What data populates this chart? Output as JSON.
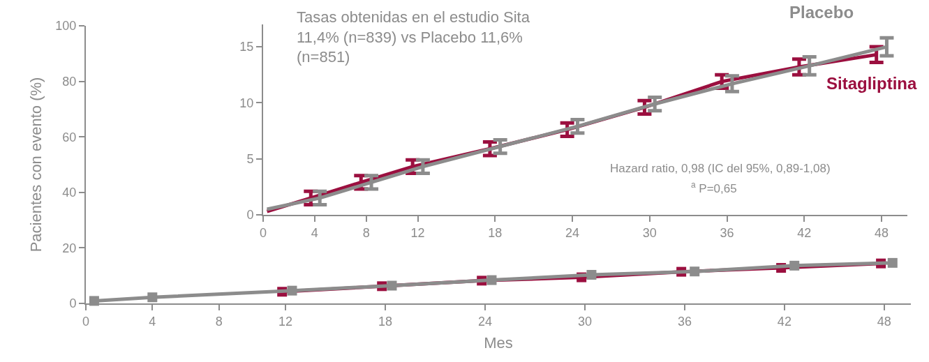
{
  "chart_data": [
    {
      "type": "line",
      "xlabel": "Mes",
      "ylabel": "Pacientes con evento (%)",
      "xlim": [
        0,
        49.6
      ],
      "ylim": [
        0,
        100
      ],
      "xticks": [
        0,
        4,
        8,
        12,
        18,
        24,
        30,
        36,
        42,
        48
      ],
      "yticks": [
        0,
        20,
        40,
        60,
        80,
        100
      ],
      "grid": false,
      "legend": false,
      "marker": "square",
      "line_style": "solid",
      "series": [
        {
          "color": "#9b0f3f",
          "x": [
            11.8,
            17.8,
            23.8,
            29.8,
            35.8,
            41.8,
            47.8
          ],
          "values": [
            4.2,
            6.2,
            8.2,
            9.4,
            11.4,
            12.8,
            14.4
          ]
        },
        {
          "color": "#8c8c8c",
          "x": [
            0.5,
            4,
            12.4,
            18.4,
            24.4,
            30.4,
            36.6,
            42.6,
            48.5
          ],
          "values": [
            0.9,
            2.2,
            4.6,
            6.4,
            8.4,
            10.3,
            11.5,
            13.6,
            14.6
          ]
        }
      ]
    },
    {
      "type": "line",
      "xlim": [
        0,
        50
      ],
      "ylim": [
        0,
        17
      ],
      "xticks": [
        0,
        4,
        8,
        12,
        18,
        24,
        30,
        36,
        42,
        48
      ],
      "yticks": [
        0,
        5,
        10,
        15
      ],
      "grid": false,
      "legend": false,
      "line_style": "solid",
      "annotations": [
        "Tasas obtenidas en el estudio Sita 11,4% (n=839) vs Placebo 11,6% (n=851)",
        "Hazard ratio, 0,98 (IC del 95%, 0,89-1,08)",
        "$^{a}$ P=0,65"
      ],
      "series": [
        {
          "name": "Sitagliptina",
          "color": "#9b0f3f",
          "x": [
            0.3,
            3.7,
            7.6,
            11.6,
            17.6,
            23.6,
            29.6,
            35.6,
            41.6,
            47.6
          ],
          "values": [
            0.3,
            1.5,
            2.9,
            4.3,
            5.9,
            7.6,
            9.6,
            11.9,
            13.2,
            14.3
          ],
          "errors": [
            null,
            0.6,
            0.6,
            0.6,
            0.6,
            0.6,
            0.6,
            0.6,
            0.7,
            0.7
          ]
        },
        {
          "name": "Placebo",
          "color": "#8c8c8c",
          "x": [
            0.3,
            4.4,
            8.4,
            12.4,
            18.4,
            24.4,
            30.4,
            36.4,
            42.4,
            48.4
          ],
          "values": [
            0.5,
            1.5,
            2.9,
            4.3,
            6.1,
            7.9,
            9.9,
            11.7,
            13.3,
            15.0
          ],
          "errors": [
            null,
            0.6,
            0.6,
            0.6,
            0.6,
            0.6,
            0.6,
            0.7,
            0.8,
            0.8
          ]
        }
      ]
    }
  ]
}
